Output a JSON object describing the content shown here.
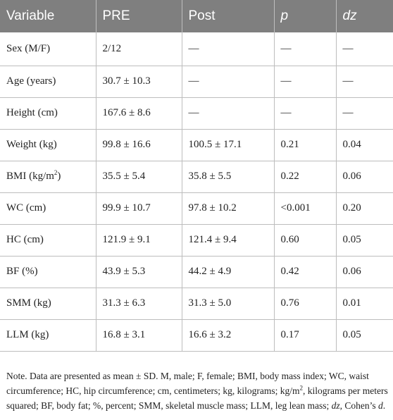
{
  "table": {
    "headers": [
      "Variable",
      "PRE",
      "Post",
      "p",
      "dz"
    ],
    "rows": [
      {
        "variable": "Sex (M/F)",
        "pre": "2/12",
        "post": "—",
        "p": "—",
        "dz": "—"
      },
      {
        "variable": "Age (years)",
        "pre": "30.7 ± 10.3",
        "post": "—",
        "p": "—",
        "dz": "—"
      },
      {
        "variable": "Height (cm)",
        "pre": "167.6 ± 8.6",
        "post": "—",
        "p": "—",
        "dz": "—"
      },
      {
        "variable": "Weight (kg)",
        "pre": "99.8 ± 16.6",
        "post": "100.5 ± 17.1",
        "p": "0.21",
        "dz": "0.04"
      },
      {
        "variable_prefix": "BMI (kg/m",
        "variable_sup": "2",
        "variable_suffix": ")",
        "pre": "35.5 ± 5.4",
        "post": "35.8 ± 5.5",
        "p": "0.22",
        "dz": "0.06"
      },
      {
        "variable": "WC (cm)",
        "pre": "99.9 ± 10.7",
        "post": "97.8 ± 10.2",
        "p": "<0.001",
        "dz": "0.20"
      },
      {
        "variable": "HC (cm)",
        "pre": "121.9 ± 9.1",
        "post": "121.4 ± 9.4",
        "p": "0.60",
        "dz": "0.05"
      },
      {
        "variable": "BF (%)",
        "pre": "43.9 ± 5.3",
        "post": "44.2 ± 4.9",
        "p": "0.42",
        "dz": "0.06"
      },
      {
        "variable": "SMM (kg)",
        "pre": "31.3 ± 6.3",
        "post": "31.3 ± 5.0",
        "p": "0.76",
        "dz": "0.01"
      },
      {
        "variable": "LLM (kg)",
        "pre": "16.8 ± 3.1",
        "post": "16.6 ± 3.2",
        "p": "0.17",
        "dz": "0.05"
      }
    ]
  },
  "note": {
    "part1": "Note. Data are presented as mean ± SD. M, male; F, female; BMI, body mass index; WC, waist circumference; HC, hip circumference; cm, centimeters; kg, kilograms; kg/m",
    "sup": "2",
    "part2": ", kilograms per meters squared; BF, body fat; %, percent; SMM, skeletal muscle mass; LLM, leg lean mass; ",
    "dz": "dz",
    "part3": ", Cohen’s ",
    "d": "d",
    "part4": "."
  }
}
